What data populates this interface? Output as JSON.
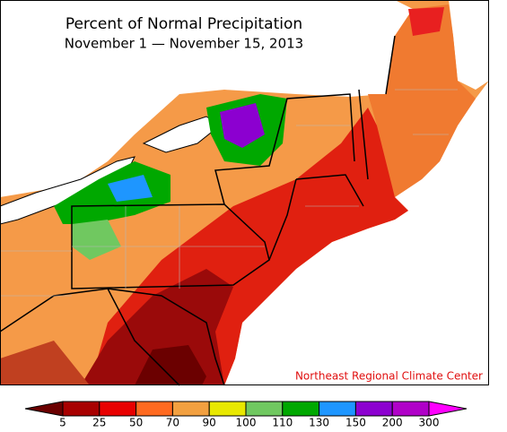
{
  "header": {
    "title": "Percent of Normal Precipitation",
    "subtitle": "November 1 — November 15, 2013"
  },
  "credit": "Northeast Regional Climate Center",
  "legend": {
    "ticks": [
      5,
      25,
      50,
      70,
      90,
      100,
      110,
      130,
      150,
      200,
      300
    ],
    "colors": [
      "#6b0000",
      "#a80000",
      "#e80000",
      "#ff6a20",
      "#f2a040",
      "#e8e800",
      "#70c860",
      "#00a800",
      "#1e96ff",
      "#8c00d0",
      "#b000c8",
      "#ff00ff"
    ]
  }
}
